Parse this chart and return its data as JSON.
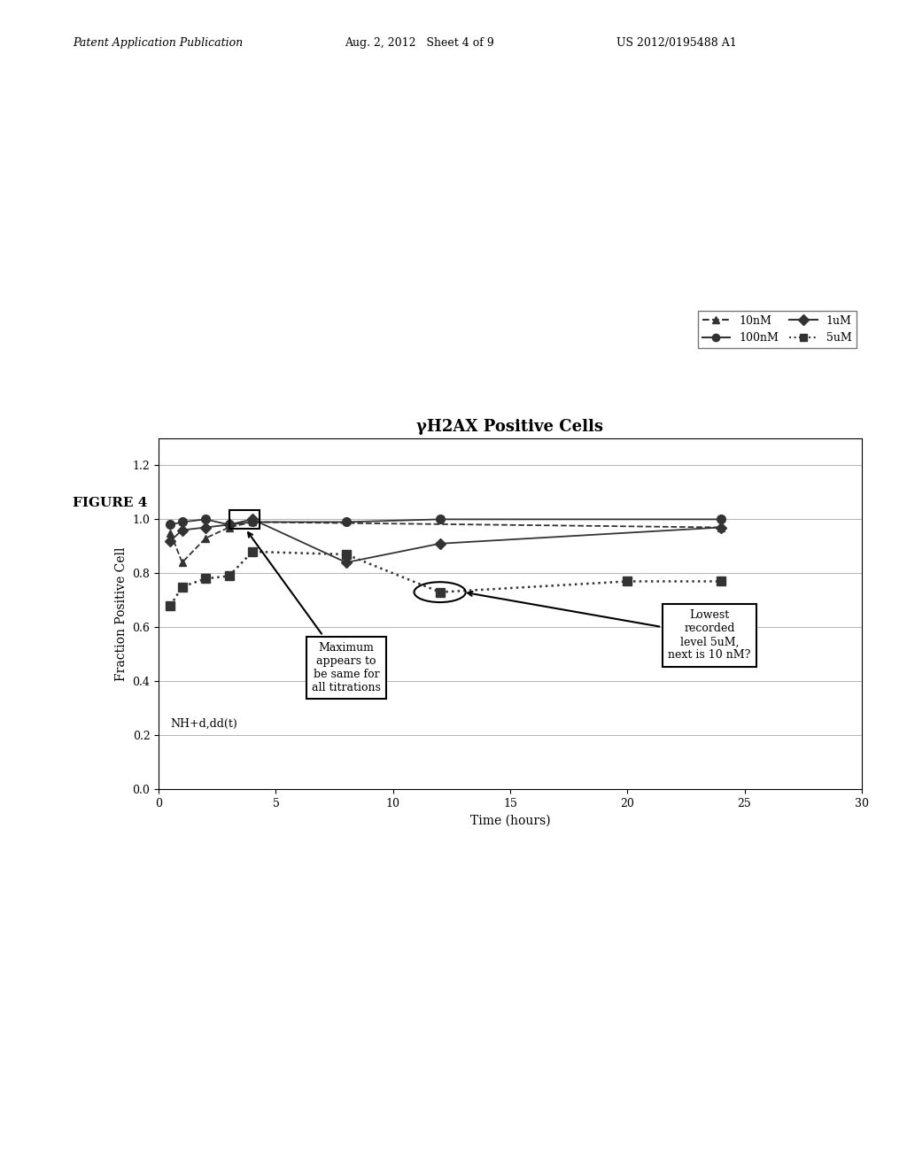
{
  "title": "γH2AX Positive Cells",
  "xlabel": "Time (hours)",
  "ylabel": "Fraction Positive Cell",
  "xlim": [
    0,
    30
  ],
  "ylim": [
    0,
    1.3
  ],
  "yticks": [
    0,
    0.2,
    0.4,
    0.6,
    0.8,
    1.0,
    1.2
  ],
  "xticks": [
    0,
    5,
    10,
    15,
    20,
    25,
    30
  ],
  "series": {
    "10nM": {
      "x": [
        0.5,
        1,
        2,
        3,
        4,
        24
      ],
      "y": [
        0.95,
        0.84,
        0.93,
        0.97,
        0.99,
        0.97
      ],
      "color": "#333333",
      "linestyle": "--",
      "marker": "^",
      "label": "10nM"
    },
    "100nM": {
      "x": [
        0.5,
        1,
        2,
        3,
        4,
        8,
        12,
        24
      ],
      "y": [
        0.98,
        0.99,
        1.0,
        0.98,
        0.99,
        0.99,
        1.0,
        1.0
      ],
      "color": "#333333",
      "linestyle": "-",
      "marker": "o",
      "label": "100nM"
    },
    "1uM": {
      "x": [
        0.5,
        1,
        2,
        3,
        4,
        8,
        12,
        24
      ],
      "y": [
        0.92,
        0.96,
        0.97,
        0.98,
        1.0,
        0.84,
        0.91,
        0.97
      ],
      "color": "#333333",
      "linestyle": "-",
      "marker": "D",
      "label": "1uM"
    },
    "5uM": {
      "x": [
        0.5,
        1,
        2,
        3,
        4,
        8,
        12,
        20,
        24
      ],
      "y": [
        0.68,
        0.75,
        0.78,
        0.79,
        0.88,
        0.87,
        0.73,
        0.77,
        0.77
      ],
      "color": "#333333",
      "linestyle": ":",
      "marker": "s",
      "label": "5uM"
    }
  },
  "annotation_text": "NH+d,dd(t)",
  "box1_text": "Maximum\nappears to\nbe same for\nall titrations",
  "box2_text": "Lowest\nrecorded\nlevel 5uM,\nnext is 10 nM?",
  "header_left": "Patent Application Publication",
  "header_center": "Aug. 2, 2012   Sheet 4 of 9",
  "header_right": "US 2012/0195488 A1",
  "figure_label": "FIGURE 4",
  "bg_color": "#ffffff"
}
